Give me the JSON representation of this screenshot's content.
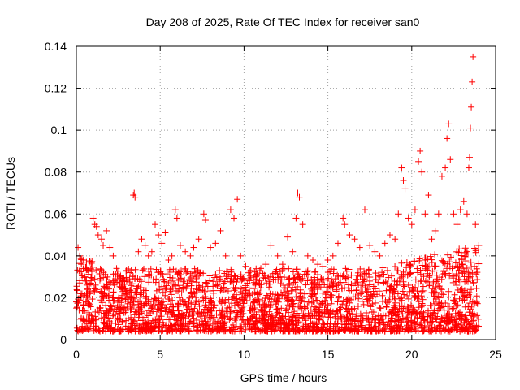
{
  "chart_data": {
    "type": "scatter",
    "title": "Day 208 of 2025, Rate Of TEC Index for receiver san0",
    "xlabel": "GPS time / hours",
    "ylabel": "ROTI / TECUs",
    "xlim": [
      0,
      25
    ],
    "ylim": [
      0,
      0.14
    ],
    "x_ticks": [
      "0",
      "5",
      "10",
      "15",
      "20",
      "25"
    ],
    "y_ticks": [
      "0",
      "0.02",
      "0.04",
      "0.06",
      "0.08",
      "0.1",
      "0.12",
      "0.14"
    ],
    "grid": true,
    "marker": "+",
    "color": "#ff0000",
    "series": [
      {
        "points": [
          [
            0.0,
            0.018
          ],
          [
            0.1,
            0.044
          ],
          [
            0.2,
            0.04
          ],
          [
            0.3,
            0.036
          ],
          [
            0.4,
            0.038
          ],
          [
            0.5,
            0.03
          ],
          [
            0.6,
            0.028
          ],
          [
            0.8,
            0.022
          ],
          [
            1.0,
            0.058
          ],
          [
            1.1,
            0.055
          ],
          [
            1.2,
            0.054
          ],
          [
            1.3,
            0.05
          ],
          [
            1.5,
            0.048
          ],
          [
            1.6,
            0.045
          ],
          [
            1.8,
            0.052
          ],
          [
            2.0,
            0.044
          ],
          [
            2.2,
            0.04
          ],
          [
            2.4,
            0.034
          ],
          [
            2.6,
            0.03
          ],
          [
            2.8,
            0.024
          ],
          [
            3.0,
            0.028
          ],
          [
            3.2,
            0.032
          ],
          [
            3.4,
            0.069
          ],
          [
            3.45,
            0.07
          ],
          [
            3.5,
            0.068
          ],
          [
            3.7,
            0.042
          ],
          [
            3.9,
            0.048
          ],
          [
            4.1,
            0.045
          ],
          [
            4.3,
            0.04
          ],
          [
            4.5,
            0.042
          ],
          [
            4.7,
            0.055
          ],
          [
            4.9,
            0.05
          ],
          [
            5.1,
            0.046
          ],
          [
            5.3,
            0.051
          ],
          [
            5.5,
            0.038
          ],
          [
            5.7,
            0.04
          ],
          [
            5.9,
            0.062
          ],
          [
            6.0,
            0.058
          ],
          [
            6.2,
            0.045
          ],
          [
            6.5,
            0.042
          ],
          [
            6.8,
            0.04
          ],
          [
            7.0,
            0.044
          ],
          [
            7.3,
            0.048
          ],
          [
            7.6,
            0.06
          ],
          [
            7.7,
            0.057
          ],
          [
            8.0,
            0.044
          ],
          [
            8.3,
            0.046
          ],
          [
            8.6,
            0.052
          ],
          [
            8.9,
            0.04
          ],
          [
            9.2,
            0.062
          ],
          [
            9.4,
            0.058
          ],
          [
            9.6,
            0.067
          ],
          [
            9.8,
            0.04
          ],
          [
            10.1,
            0.035
          ],
          [
            10.4,
            0.033
          ],
          [
            10.7,
            0.03
          ],
          [
            11.0,
            0.034
          ],
          [
            11.3,
            0.036
          ],
          [
            11.6,
            0.045
          ],
          [
            12.0,
            0.04
          ],
          [
            12.3,
            0.036
          ],
          [
            12.6,
            0.049
          ],
          [
            12.9,
            0.042
          ],
          [
            13.1,
            0.058
          ],
          [
            13.2,
            0.07
          ],
          [
            13.3,
            0.068
          ],
          [
            13.5,
            0.055
          ],
          [
            13.8,
            0.04
          ],
          [
            14.1,
            0.038
          ],
          [
            14.4,
            0.036
          ],
          [
            14.7,
            0.035
          ],
          [
            15.0,
            0.038
          ],
          [
            15.3,
            0.04
          ],
          [
            15.6,
            0.046
          ],
          [
            15.9,
            0.058
          ],
          [
            16.0,
            0.055
          ],
          [
            16.3,
            0.05
          ],
          [
            16.6,
            0.048
          ],
          [
            16.9,
            0.044
          ],
          [
            17.2,
            0.062
          ],
          [
            17.5,
            0.045
          ],
          [
            17.8,
            0.042
          ],
          [
            18.1,
            0.04
          ],
          [
            18.4,
            0.046
          ],
          [
            18.7,
            0.05
          ],
          [
            19.0,
            0.048
          ],
          [
            19.2,
            0.06
          ],
          [
            19.4,
            0.082
          ],
          [
            19.5,
            0.076
          ],
          [
            19.6,
            0.072
          ],
          [
            19.8,
            0.058
          ],
          [
            20.0,
            0.055
          ],
          [
            20.2,
            0.062
          ],
          [
            20.4,
            0.085
          ],
          [
            20.5,
            0.09
          ],
          [
            20.6,
            0.08
          ],
          [
            20.8,
            0.06
          ],
          [
            21.0,
            0.069
          ],
          [
            21.2,
            0.048
          ],
          [
            21.4,
            0.052
          ],
          [
            21.6,
            0.06
          ],
          [
            21.8,
            0.078
          ],
          [
            22.0,
            0.082
          ],
          [
            22.1,
            0.096
          ],
          [
            22.2,
            0.103
          ],
          [
            22.3,
            0.086
          ],
          [
            22.5,
            0.06
          ],
          [
            22.7,
            0.055
          ],
          [
            22.9,
            0.062
          ],
          [
            23.1,
            0.066
          ],
          [
            23.3,
            0.06
          ],
          [
            23.4,
            0.082
          ],
          [
            23.45,
            0.087
          ],
          [
            23.5,
            0.101
          ],
          [
            23.55,
            0.111
          ],
          [
            23.6,
            0.123
          ],
          [
            23.65,
            0.135
          ],
          [
            23.8,
            0.055
          ],
          [
            24.0,
            0.045
          ]
        ]
      }
    ]
  }
}
